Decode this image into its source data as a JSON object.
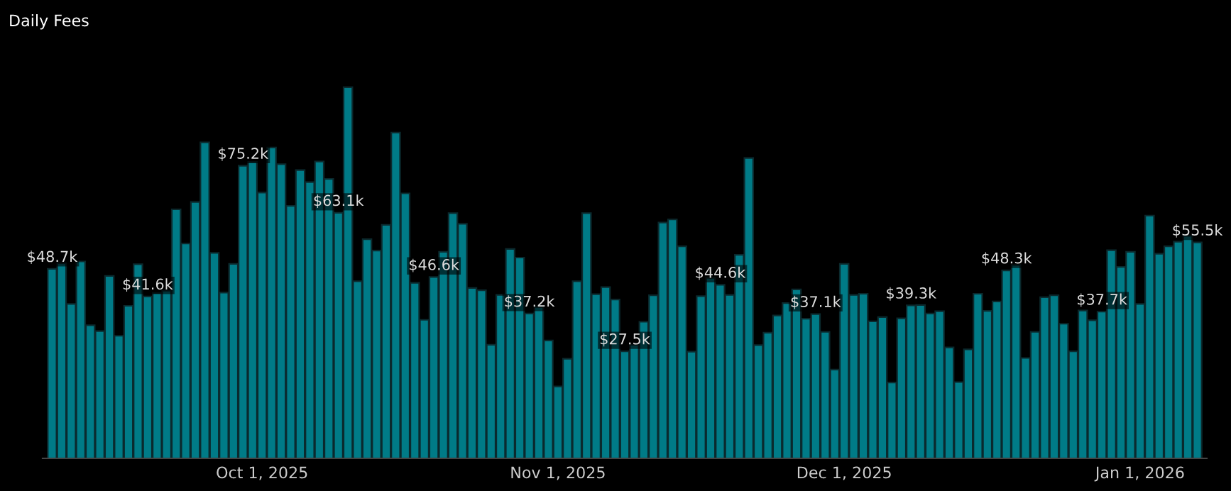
{
  "chart_data": {
    "type": "bar",
    "title": "Daily Fees",
    "x": [
      "2025-09-09",
      "2025-09-10",
      "2025-09-11",
      "2025-09-12",
      "2025-09-13",
      "2025-09-14",
      "2025-09-15",
      "2025-09-16",
      "2025-09-17",
      "2025-09-18",
      "2025-09-19",
      "2025-09-20",
      "2025-09-21",
      "2025-09-22",
      "2025-09-23",
      "2025-09-24",
      "2025-09-25",
      "2025-09-26",
      "2025-09-27",
      "2025-09-28",
      "2025-09-29",
      "2025-09-30",
      "2025-10-01",
      "2025-10-02",
      "2025-10-03",
      "2025-10-04",
      "2025-10-05",
      "2025-10-06",
      "2025-10-07",
      "2025-10-08",
      "2025-10-09",
      "2025-10-10",
      "2025-10-11",
      "2025-10-12",
      "2025-10-13",
      "2025-10-14",
      "2025-10-15",
      "2025-10-16",
      "2025-10-17",
      "2025-10-18",
      "2025-10-19",
      "2025-10-20",
      "2025-10-21",
      "2025-10-22",
      "2025-10-23",
      "2025-10-24",
      "2025-10-25",
      "2025-10-26",
      "2025-10-27",
      "2025-10-28",
      "2025-10-29",
      "2025-10-30",
      "2025-10-31",
      "2025-11-01",
      "2025-11-02",
      "2025-11-03",
      "2025-11-04",
      "2025-11-05",
      "2025-11-06",
      "2025-11-07",
      "2025-11-08",
      "2025-11-09",
      "2025-11-10",
      "2025-11-11",
      "2025-11-12",
      "2025-11-13",
      "2025-11-14",
      "2025-11-15",
      "2025-11-16",
      "2025-11-17",
      "2025-11-18",
      "2025-11-19",
      "2025-11-20",
      "2025-11-21",
      "2025-11-22",
      "2025-11-23",
      "2025-11-24",
      "2025-11-25",
      "2025-11-26",
      "2025-11-27",
      "2025-11-28",
      "2025-11-29",
      "2025-11-30",
      "2025-12-01",
      "2025-12-02",
      "2025-12-03",
      "2025-12-04",
      "2025-12-05",
      "2025-12-06",
      "2025-12-07",
      "2025-12-08",
      "2025-12-09",
      "2025-12-10",
      "2025-12-11",
      "2025-12-12",
      "2025-12-13",
      "2025-12-14",
      "2025-12-15",
      "2025-12-16",
      "2025-12-17",
      "2025-12-18",
      "2025-12-19",
      "2025-12-20",
      "2025-12-21",
      "2025-12-22",
      "2025-12-23",
      "2025-12-24",
      "2025-12-25",
      "2025-12-26",
      "2025-12-27",
      "2025-12-28",
      "2025-12-29",
      "2025-12-30",
      "2025-12-31",
      "2026-01-01",
      "2026-01-02",
      "2026-01-03",
      "2026-01-04",
      "2026-01-05",
      "2026-01-06",
      "2026-01-07"
    ],
    "values": [
      48.7,
      50.1,
      39.7,
      50.6,
      34.2,
      32.7,
      46.9,
      31.5,
      39.2,
      49.9,
      41.6,
      42.5,
      43.1,
      64.0,
      55.2,
      65.9,
      81.2,
      52.8,
      42.6,
      50.0,
      75.2,
      76.2,
      68.3,
      79.9,
      75.6,
      64.9,
      74.1,
      71.0,
      76.3,
      71.8,
      63.1,
      95.4,
      45.5,
      56.3,
      53.4,
      60.0,
      83.7,
      68.1,
      45.1,
      35.6,
      46.6,
      53.1,
      63.0,
      60.3,
      43.8,
      43.2,
      29.2,
      42.0,
      53.8,
      51.6,
      37.2,
      38.9,
      30.3,
      18.5,
      25.6,
      45.5,
      63.0,
      42.2,
      44.0,
      40.8,
      27.5,
      29.2,
      35.1,
      41.9,
      60.6,
      61.4,
      54.5,
      27.4,
      41.7,
      46.4,
      44.6,
      42.0,
      52.3,
      77.2,
      29.1,
      32.3,
      36.7,
      39.9,
      43.4,
      35.9,
      37.1,
      32.5,
      22.8,
      50.0,
      42.0,
      42.3,
      35.2,
      36.3,
      19.5,
      36.0,
      39.3,
      39.4,
      37.2,
      37.8,
      28.5,
      19.6,
      28.0,
      42.3,
      37.9,
      40.3,
      48.3,
      49.7,
      25.8,
      32.5,
      41.4,
      41.9,
      34.6,
      27.5,
      38.0,
      35.5,
      37.7,
      53.5,
      49.2,
      53.1,
      39.7,
      62.4,
      52.6,
      54.5,
      55.7,
      57.2,
      55.5
    ],
    "value_labels": [
      "$48.7k",
      null,
      null,
      null,
      null,
      null,
      null,
      null,
      null,
      null,
      "$41.6k",
      null,
      null,
      null,
      null,
      null,
      null,
      null,
      null,
      null,
      "$75.2k",
      null,
      null,
      null,
      null,
      null,
      null,
      null,
      null,
      null,
      "$63.1k",
      null,
      null,
      null,
      null,
      null,
      null,
      null,
      null,
      null,
      "$46.6k",
      null,
      null,
      null,
      null,
      null,
      null,
      null,
      null,
      null,
      "$37.2k",
      null,
      null,
      null,
      null,
      null,
      null,
      null,
      null,
      null,
      "$27.5k",
      null,
      null,
      null,
      null,
      null,
      null,
      null,
      null,
      null,
      "$44.6k",
      null,
      null,
      null,
      null,
      null,
      null,
      null,
      null,
      null,
      "$37.1k",
      null,
      null,
      null,
      null,
      null,
      null,
      null,
      null,
      null,
      "$39.3k",
      null,
      null,
      null,
      null,
      null,
      null,
      null,
      null,
      null,
      "$48.3k",
      null,
      null,
      null,
      null,
      null,
      null,
      null,
      null,
      null,
      "$37.7k",
      null,
      null,
      null,
      null,
      null,
      null,
      null,
      null,
      null,
      "$55.5k"
    ],
    "color": "#007b87",
    "xlim": [
      "2025-09-08",
      "2026-01-08"
    ],
    "xticks": [
      {
        "value": "2025-10-01",
        "label": "Oct 1, 2025"
      },
      {
        "value": "2025-11-01",
        "label": "Nov 1, 2025"
      },
      {
        "value": "2025-12-01",
        "label": "Dec 1, 2025"
      },
      {
        "value": "2026-01-01",
        "label": "Jan 1, 2026"
      }
    ],
    "tick_labels": "x"
  }
}
